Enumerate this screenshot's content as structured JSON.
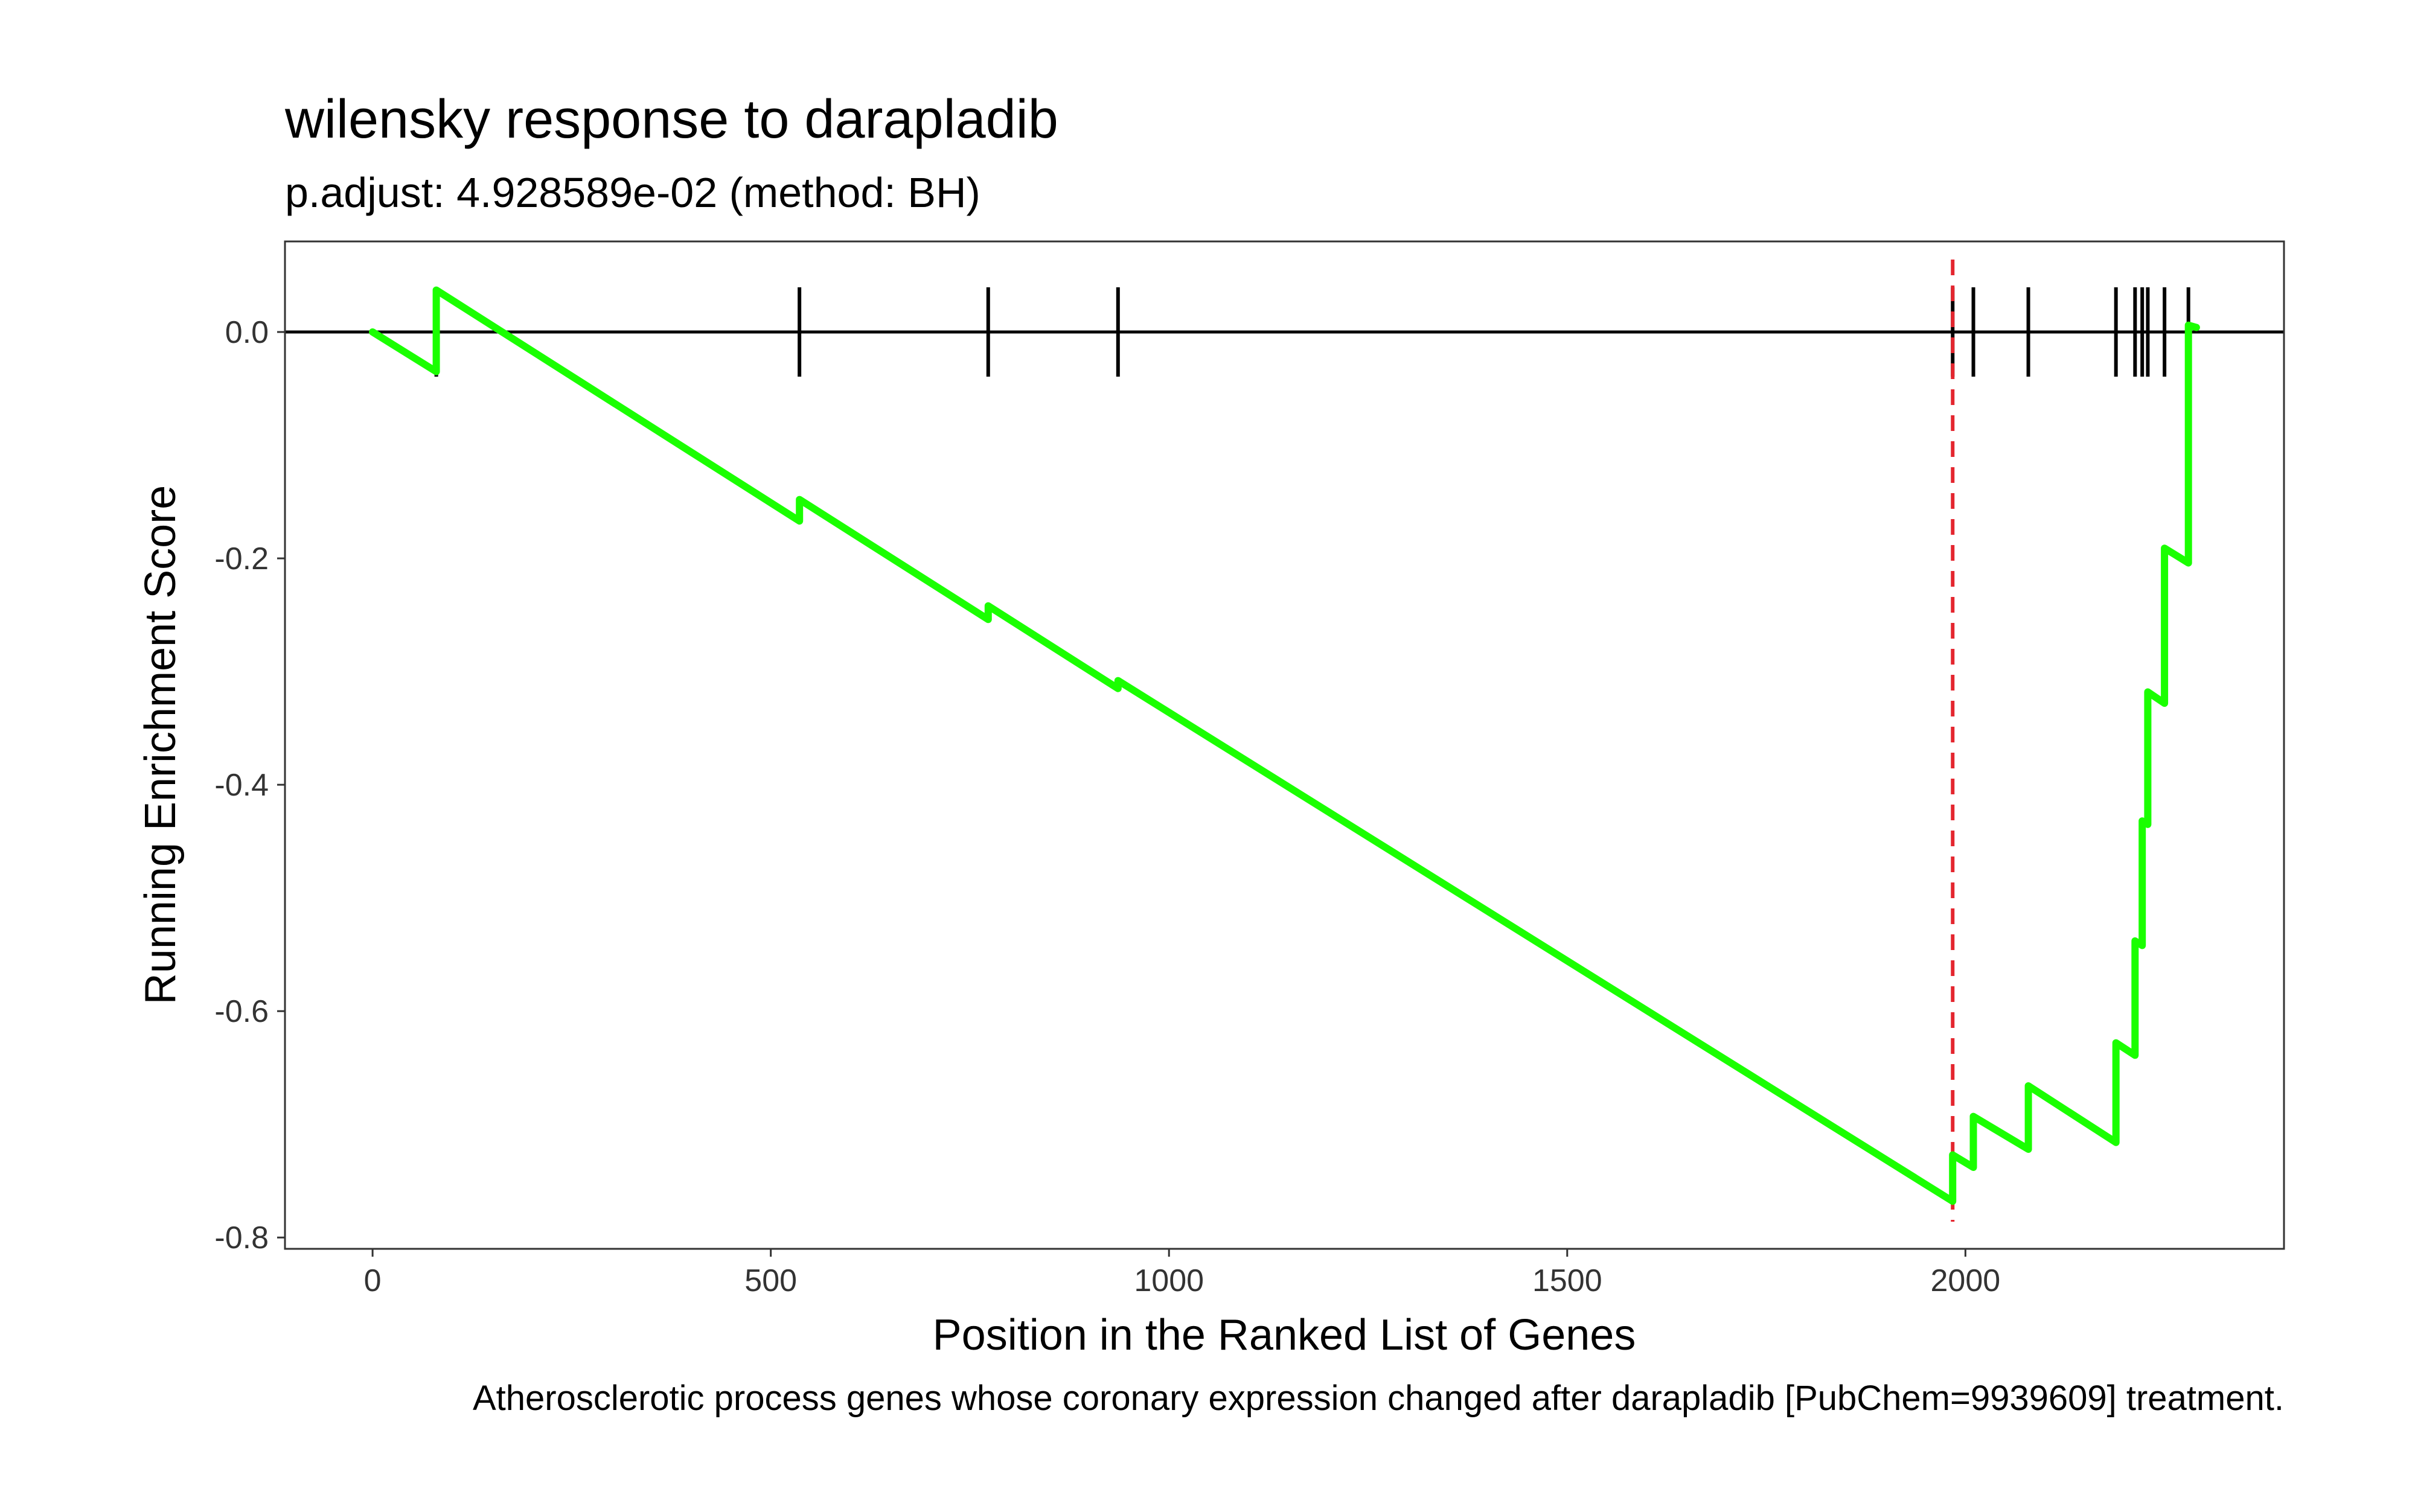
{
  "chart_data": {
    "type": "line",
    "title": "wilensky response to darapladib",
    "subtitle": "p.adjust: 4.928589e-02 (method: BH)",
    "xlabel": "Position in the Ranked List of Genes",
    "ylabel": "Running Enrichment Score",
    "caption": "Atherosclerotic process genes whose coronary expression changed after darapladib [PubChem=9939609] treatment.",
    "xlim": [
      -110,
      2400
    ],
    "ylim": [
      -0.81,
      0.08
    ],
    "x_ticks": [
      0,
      500,
      1000,
      1500,
      2000
    ],
    "x_tick_labels": [
      "0",
      "500",
      "1000",
      "1500",
      "2000"
    ],
    "y_ticks": [
      0.0,
      -0.2,
      -0.4,
      -0.6,
      -0.8
    ],
    "y_tick_labels": [
      "0.0",
      "-0.2",
      "-0.4",
      "-0.6",
      "-0.8"
    ],
    "hits": [
      80,
      536,
      773,
      936,
      1984,
      2010,
      2079,
      2189,
      2213,
      2222,
      2229,
      2250,
      2280
    ],
    "series": [
      {
        "name": "Running Enrichment Score",
        "color": "#1aff00",
        "x": [
          0,
          80,
          80,
          536,
          536,
          773,
          773,
          936,
          936,
          1984,
          1984,
          2010,
          2010,
          2079,
          2079,
          2189,
          2189,
          2213,
          2213,
          2222,
          2222,
          2229,
          2229,
          2250,
          2250,
          2280,
          2280,
          2290
        ],
        "y": [
          0.0,
          -0.035,
          0.037,
          -0.167,
          -0.148,
          -0.254,
          -0.242,
          -0.315,
          -0.308,
          -0.768,
          -0.727,
          -0.738,
          -0.693,
          -0.722,
          -0.666,
          -0.716,
          -0.628,
          -0.639,
          -0.538,
          -0.542,
          -0.432,
          -0.435,
          -0.318,
          -0.328,
          -0.191,
          -0.204,
          0.006,
          0.004
        ]
      }
    ],
    "vline": {
      "x": 1984,
      "color": "#e4262f",
      "style": "dashed"
    },
    "hline": {
      "y": 0.0,
      "color": "#000000"
    }
  }
}
